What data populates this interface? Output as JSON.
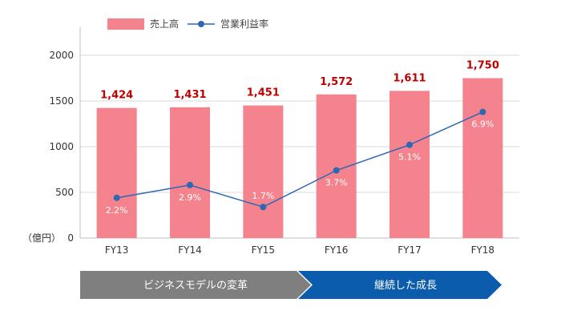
{
  "chart_data": {
    "type": "bar",
    "categories": [
      "FY13",
      "FY14",
      "FY15",
      "FY16",
      "FY17",
      "FY18"
    ],
    "series": [
      {
        "name": "売上高",
        "type": "bar",
        "values": [
          1424,
          1431,
          1451,
          1572,
          1611,
          1750
        ],
        "labels": [
          "1,424",
          "1,431",
          "1,451",
          "1,572",
          "1,611",
          "1,750"
        ],
        "color": "#f4838e"
      },
      {
        "name": "営業利益率",
        "type": "line",
        "values": [
          2.2,
          2.9,
          1.7,
          3.7,
          5.1,
          6.9
        ],
        "labels": [
          "2.2%",
          "2.9%",
          "1.7%",
          "3.7%",
          "5.1%",
          "6.9%"
        ],
        "color": "#2f67b4"
      }
    ],
    "ylim": [
      0,
      2000
    ],
    "yticks": [
      0,
      500,
      1000,
      1500,
      2000
    ],
    "ytick_labels": [
      "0",
      "500",
      "1000",
      "1500",
      "2000"
    ],
    "y2lim": [
      0,
      10
    ],
    "ylabel": "（億円）",
    "grid": true,
    "legend": "top-left"
  },
  "phases": [
    {
      "label": "ビジネスモデルの変革",
      "color": "#7f7f7f"
    },
    {
      "label": "継続した成長",
      "color": "#0b5cad"
    }
  ]
}
